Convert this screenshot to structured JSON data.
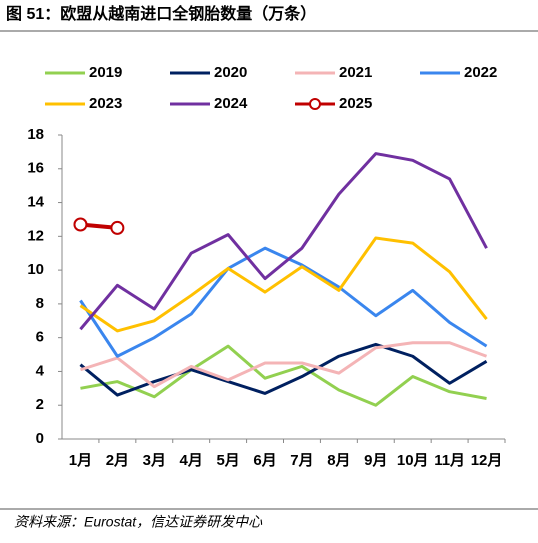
{
  "chart_data": {
    "type": "line",
    "title": "图 51：欧盟从越南进口全钢胎数量（万条）",
    "source": "资料来源：Eurostat，信达证券研发中心",
    "categories": [
      "1月",
      "2月",
      "3月",
      "4月",
      "5月",
      "6月",
      "7月",
      "8月",
      "9月",
      "10月",
      "11月",
      "12月"
    ],
    "ylim": [
      0,
      18
    ],
    "yticks": [
      0,
      2,
      4,
      6,
      8,
      10,
      12,
      14,
      16,
      18
    ],
    "series": [
      {
        "name": "2019",
        "color": "#92d050",
        "values": [
          3.0,
          3.4,
          2.5,
          4.1,
          5.5,
          3.6,
          4.3,
          2.9,
          2.0,
          3.7,
          2.8,
          2.4
        ]
      },
      {
        "name": "2020",
        "color": "#002060",
        "values": [
          4.4,
          2.6,
          3.4,
          4.1,
          3.4,
          2.7,
          3.7,
          4.9,
          5.6,
          4.9,
          3.3,
          4.6
        ]
      },
      {
        "name": "2021",
        "color": "#f4b4b6",
        "values": [
          4.1,
          4.8,
          3.1,
          4.3,
          3.5,
          4.5,
          4.5,
          3.9,
          5.4,
          5.7,
          5.7,
          4.9
        ]
      },
      {
        "name": "2022",
        "color": "#3a86ee",
        "values": [
          8.2,
          4.9,
          6.0,
          7.4,
          10.1,
          11.3,
          10.3,
          9.0,
          7.3,
          8.8,
          6.9,
          5.5
        ]
      },
      {
        "name": "2023",
        "color": "#ffc000",
        "values": [
          7.9,
          6.4,
          7.0,
          8.5,
          10.1,
          8.7,
          10.2,
          8.8,
          11.9,
          11.6,
          9.9,
          7.1
        ]
      },
      {
        "name": "2024",
        "color": "#7030a0",
        "values": [
          6.5,
          9.1,
          7.7,
          11.0,
          12.1,
          9.5,
          11.3,
          14.5,
          16.9,
          16.5,
          15.4,
          11.3
        ]
      },
      {
        "name": "2025",
        "color": "#c00000",
        "marker": true,
        "values": [
          12.7,
          12.5,
          null,
          null,
          null,
          null,
          null,
          null,
          null,
          null,
          null,
          null
        ]
      }
    ]
  }
}
